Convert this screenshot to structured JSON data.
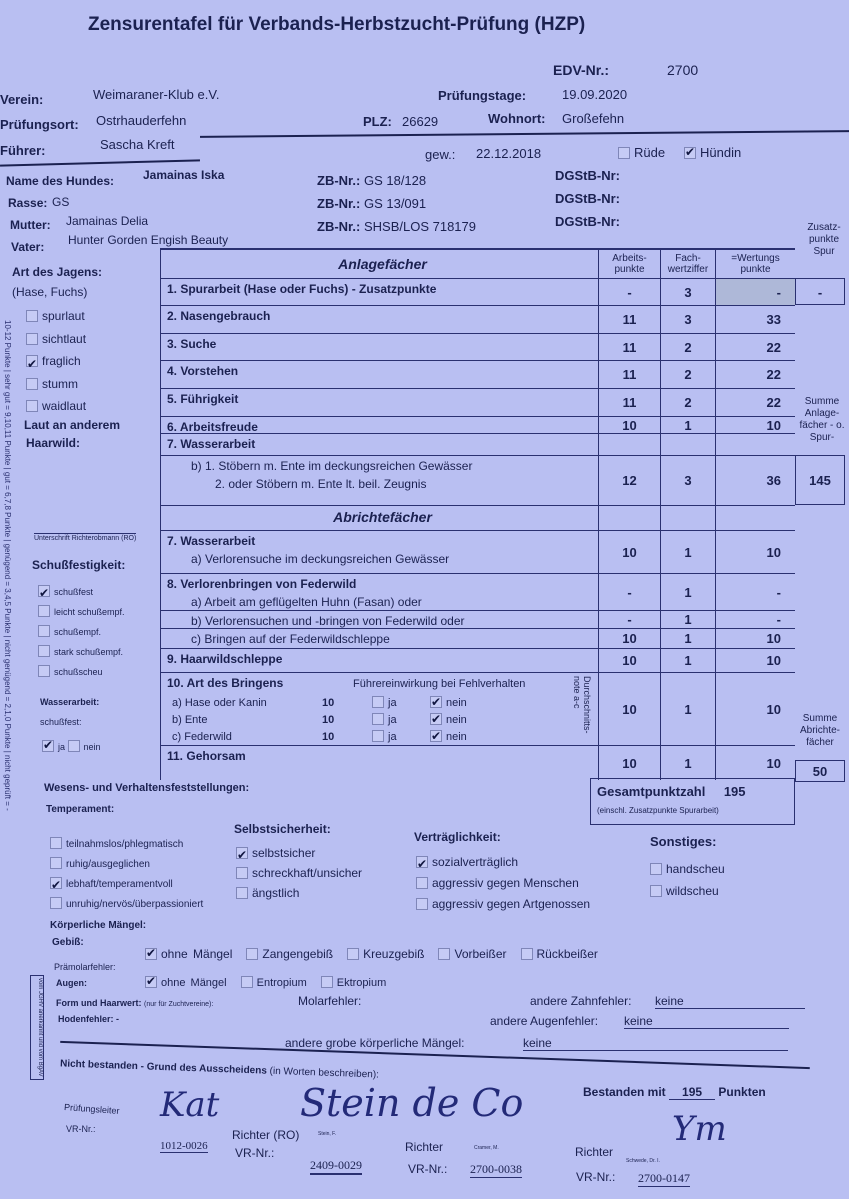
{
  "title": "Zensurentafel für Verbands-Herbstzucht-Prüfung (HZP)",
  "header": {
    "edv_label": "EDV-Nr.:",
    "edv": "2700",
    "verein_label": "Verein:",
    "verein": "Weimaraner-Klub e.V.",
    "pruefungstage_label": "Prüfungstage:",
    "pruefungstage": "19.09.2020",
    "ort_label": "Prüfungsort:",
    "ort": "Ostrhauderfehn",
    "plz_label": "PLZ:",
    "plz": "26629",
    "wohnort_label": "Wohnort:",
    "wohnort": "Großefehn",
    "fuehrer_label": "Führer:",
    "fuehrer": "Sascha Kreft",
    "gew_label": "gew.:",
    "gew": "22.12.2018",
    "ruede": "Rüde",
    "ruede_checked": false,
    "huendin": "Hündin",
    "huendin_checked": true
  },
  "dog": {
    "name_label": "Name des Hundes:",
    "name": "Jamainas Iska",
    "rasse_label": "Rasse:",
    "rasse": "GS",
    "mutter_label": "Mutter:",
    "mutter": "Jamainas Delia",
    "vater_label": "Vater:",
    "vater": "Hunter Gorden Engish Beauty",
    "zb_label": "ZB-Nr.:",
    "zb": [
      "GS 18/128",
      "GS 13/091",
      "SHSB/LOS 718179"
    ],
    "dgstb_label": "DGStB-Nr:"
  },
  "left": {
    "art_title": "Art des Jagens:",
    "art_sub": "(Hase, Fuchs)",
    "art": [
      {
        "label": "spurlaut",
        "checked": false
      },
      {
        "label": "sichtlaut",
        "checked": false
      },
      {
        "label": "fraglich",
        "checked": true
      },
      {
        "label": "stumm",
        "checked": false
      },
      {
        "label": "waidlaut",
        "checked": false
      }
    ],
    "laut": "Laut an anderem",
    "haarwild": "Haarwild:",
    "unterschrift": "Unterschrift Richterobmann (RO)",
    "schuss_title": "Schußfestigkeit:",
    "schuss": [
      {
        "label": "schußfest",
        "checked": true
      },
      {
        "label": "leicht schußempf.",
        "checked": false
      },
      {
        "label": "schußempf.",
        "checked": false
      },
      {
        "label": "stark schußempf.",
        "checked": false
      },
      {
        "label": "schußscheu",
        "checked": false
      }
    ],
    "wasser_title": "Wasserarbeit:",
    "wasser_sub": "schußfest:",
    "ja": "ja",
    "nein": "nein",
    "ja_checked": true,
    "vertical": "10-12 Punkte | sehr gut = 9,10,11 Punkte | gut = 6,7,8 Punkte | genügend = 3,4,5 Punkte | nicht genügend = 2,1,0 Punkte | nicht geprüft = -"
  },
  "table": {
    "col_arbeits": "Arbeits-punkte",
    "col_fach": "Fach-wertziffer",
    "col_wertung": "=Wertungs punkte",
    "col_zusatz": "Zusatz-punkte Spur",
    "anlage_title": "Anlagefächer",
    "abricht_title": "Abrichtefächer",
    "rows": [
      {
        "label": "1. Spurarbeit (Hase oder Fuchs) - Zusatzpunkte",
        "a": "-",
        "f": "3",
        "w": "-",
        "z": "-"
      },
      {
        "label": "2. Nasengebrauch",
        "a": "11",
        "f": "3",
        "w": "33"
      },
      {
        "label": "3. Suche",
        "a": "11",
        "f": "2",
        "w": "22"
      },
      {
        "label": "4. Vorstehen",
        "a": "11",
        "f": "2",
        "w": "22"
      },
      {
        "label": "5. Führigkeit",
        "a": "11",
        "f": "2",
        "w": "22"
      },
      {
        "label": "6. Arbeitsfreude",
        "a": "10",
        "f": "1",
        "w": "10"
      },
      {
        "label": "7. Wasserarbeit",
        "a": "",
        "f": "",
        "w": ""
      },
      {
        "label": "b) 1. Stöbern m. Ente im deckungsreichen Gewässer",
        "label2": "2. oder Stöbern m. Ente lt. beil. Zeugnis",
        "a": "12",
        "f": "3",
        "w": "36"
      },
      {
        "label": "",
        "a": "",
        "f": "",
        "w": ""
      },
      {
        "label": "7. Wasserarbeit",
        "label2": "a) Verlorensuche im deckungsreichen Gewässer",
        "a": "10",
        "f": "1",
        "w": "10"
      },
      {
        "label": "8. Verlorenbringen von Federwild",
        "label2": "a) Arbeit am geflügelten Huhn (Fasan) oder",
        "a": "-",
        "f": "1",
        "w": "-"
      },
      {
        "label": "b) Verlorensuchen und -bringen von Federwild oder",
        "a": "-",
        "f": "1",
        "w": "-"
      },
      {
        "label": "c) Bringen auf der Federwildschleppe",
        "a": "10",
        "f": "1",
        "w": "10"
      },
      {
        "label": "9. Haarwildschleppe",
        "a": "10",
        "f": "1",
        "w": "10"
      },
      {
        "label": "10. Art des Bringens",
        "a": "10",
        "f": "1",
        "w": "10"
      },
      {
        "label": "11. Gehorsam",
        "a": "10",
        "f": "1",
        "w": "10"
      }
    ],
    "summe_anlage_label": "Summe Anlage-fächer - o. Spur-",
    "summe_anlage": "145",
    "summe_abricht_label": "Summe Abrichte-fächer",
    "summe_abricht": "50",
    "bringen": {
      "fuehrer": "Führereinwirkung bei Fehlverhalten",
      "durchschnitt": "Durchschnitts-note a-c",
      "items": [
        {
          "label": "a) Hase oder Kanin",
          "val": "10",
          "ja": false,
          "nein": true
        },
        {
          "label": "b) Ente",
          "val": "10",
          "ja": false,
          "nein": true
        },
        {
          "label": "c) Federwild",
          "val": "10",
          "ja": false,
          "nein": true
        }
      ],
      "ja": "ja",
      "nein": "nein"
    },
    "gesamt_label": "Gesamtpunktzahl",
    "gesamt": "195",
    "gesamt_sub": "(einschl. Zusatzpunkte Spurarbeit)"
  },
  "wesen": {
    "title": "Wesens- und Verhaltensfeststellungen:",
    "temp_title": "Temperament:",
    "temp": [
      {
        "label": "teilnahmslos/phlegmatisch",
        "checked": false
      },
      {
        "label": "ruhig/ausgeglichen",
        "checked": false
      },
      {
        "label": "lebhaft/temperamentvoll",
        "checked": true
      },
      {
        "label": "unruhig/nervös/überpassioniert",
        "checked": false
      }
    ],
    "selbst_title": "Selbstsicherheit:",
    "selbst": [
      {
        "label": "selbstsicher",
        "checked": true
      },
      {
        "label": "schreckhaft/unsicher",
        "checked": false
      },
      {
        "label": "ängstlich",
        "checked": false
      }
    ],
    "vertr_title": "Verträglichkeit:",
    "vertr": [
      {
        "label": "sozialverträglich",
        "checked": true
      },
      {
        "label": "aggressiv gegen Menschen",
        "checked": false
      },
      {
        "label": "aggressiv gegen Artgenossen",
        "checked": false
      }
    ],
    "sonst_title": "Sonstiges:",
    "sonst": [
      {
        "label": "handscheu",
        "checked": false
      },
      {
        "label": "wildscheu",
        "checked": false
      }
    ]
  },
  "koerper": {
    "title": "Körperliche Mängel:",
    "gebiss": "Gebiß:",
    "gebiss_opts": [
      {
        "label": "ohne Mängel",
        "checked": true
      },
      {
        "label": "Zangengebiß",
        "checked": false
      },
      {
        "label": "Kreuzgebiß",
        "checked": false
      },
      {
        "label": "Vorbeißer",
        "checked": false
      },
      {
        "label": "Rückbeißer",
        "checked": false
      }
    ],
    "praemolar": "Prämolarfehler:",
    "molar": "Molarfehler:",
    "andere_zahn": "andere Zahnfehler:",
    "andere_zahn_val": "keine",
    "augen": "Augen:",
    "augen_opts": [
      {
        "label": "ohne Mängel",
        "checked": true
      },
      {
        "label": "Entropium",
        "checked": false
      },
      {
        "label": "Ektropium",
        "checked": false
      }
    ],
    "andere_augen": "andere Augenfehler:",
    "andere_augen_val": "keine",
    "form": "Form und Haarwert:",
    "form_sub": "(nur für Zuchtvereine):",
    "hoden": "Hodenfehler:",
    "hoden_val": "-",
    "grobe": "andere grobe körperliche Mängel:",
    "grobe_val": "keine"
  },
  "footer": {
    "nicht": "Nicht bestanden - Grund des Ausscheidens",
    "nicht_sub": "(in Worten beschreiben):",
    "bestanden": "Bestanden mit",
    "bestanden_val": "195",
    "punkten": "Punkten",
    "pruefungsleiter": "Prüfungsleiter",
    "vr": "VR-Nr.:",
    "vr1": "1012-0026",
    "richter_ro": "Richter (RO)",
    "vr2": "2409-0029",
    "richter": "Richter",
    "vr3": "2700-0038",
    "vr4": "2700-0147",
    "name_ro": "Stein, F.",
    "name_r2": "Cramer, M.",
    "name_r3": "Schwede, Dr. I.",
    "stamp": "vom JGHV anerkannt und vom BgAV"
  }
}
